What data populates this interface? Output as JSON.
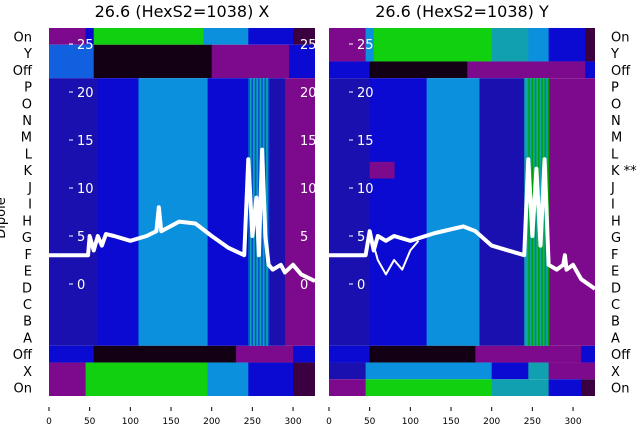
{
  "chart_data": {
    "type": "heatmap",
    "ylabel": "Dipole",
    "row_labels_left": [
      "On",
      "Y",
      "Off",
      "P",
      "O",
      "N",
      "M",
      "L",
      "K",
      "J",
      "I",
      "H",
      "G",
      "F",
      "E",
      "D",
      "C",
      "B",
      "A",
      "Off",
      "X",
      "On"
    ],
    "row_labels_right": [
      "On",
      "Y",
      "Off",
      "P",
      "O",
      "N",
      "M",
      "L",
      "K **",
      "J",
      "I",
      "H",
      "G",
      "F",
      "E",
      "D",
      "C",
      "B",
      "A",
      "Off",
      "X",
      "On"
    ],
    "colors": {
      "purple": "#7d0a8c",
      "blue": "#0a0ad2",
      "darkblue": "#1a10b0",
      "midblue": "#1060e0",
      "lightblue": "#0a90dc",
      "cyan": "#10a0b0",
      "green": "#10d010",
      "black": "#140014",
      "darkpurple": "#3a0040"
    },
    "panels": [
      {
        "title": "26.6 (HexS2=1038) X",
        "xlim": [
          0,
          327
        ],
        "xticks": [
          0,
          50,
          100,
          150,
          200,
          250,
          300
        ],
        "yticks": [
          25,
          20,
          15,
          10,
          5,
          0
        ],
        "ylim_line": [
          -11.6,
          26.8
        ],
        "rows": [
          {
            "r": [
              0,
              1
            ],
            "segs": [
              [
                0,
                45,
                "purple"
              ],
              [
                45,
                55,
                "blue"
              ],
              [
                55,
                190,
                "green"
              ],
              [
                190,
                245,
                "lightblue"
              ],
              [
                245,
                300,
                "blue"
              ],
              [
                300,
                327,
                "darkpurple"
              ]
            ]
          },
          {
            "r": [
              1,
              3
            ],
            "segs": [
              [
                0,
                55,
                "midblue"
              ],
              [
                55,
                200,
                "black"
              ],
              [
                200,
                295,
                "purple"
              ],
              [
                295,
                327,
                "blue"
              ]
            ]
          },
          {
            "r": [
              3,
              19
            ],
            "segs": [
              [
                0,
                60,
                "darkblue"
              ],
              [
                60,
                110,
                "blue"
              ],
              [
                110,
                195,
                "lightblue"
              ],
              [
                195,
                245,
                "blue"
              ],
              [
                245,
                270,
                "cyan"
              ],
              [
                270,
                290,
                "darkblue"
              ],
              [
                290,
                327,
                "purple"
              ]
            ]
          },
          {
            "r": [
              19,
              20
            ],
            "segs": [
              [
                0,
                55,
                "blue"
              ],
              [
                55,
                230,
                "black"
              ],
              [
                230,
                300,
                "purple"
              ],
              [
                300,
                327,
                "blue"
              ]
            ]
          },
          {
            "r": [
              20,
              22
            ],
            "segs": [
              [
                0,
                45,
                "purple"
              ],
              [
                45,
                195,
                "green"
              ],
              [
                195,
                245,
                "lightblue"
              ],
              [
                245,
                300,
                "blue"
              ],
              [
                300,
                327,
                "darkpurple"
              ]
            ]
          }
        ],
        "lines": [
          [
            [
              0,
              3
            ],
            [
              48,
              3
            ],
            [
              50,
              5
            ],
            [
              55,
              3.5
            ],
            [
              60,
              5
            ],
            [
              65,
              4
            ],
            [
              70,
              5.2
            ],
            [
              80,
              5
            ],
            [
              100,
              4.5
            ],
            [
              120,
              5
            ],
            [
              132,
              5.5
            ],
            [
              135,
              8
            ],
            [
              138,
              5.5
            ],
            [
              160,
              6.5
            ],
            [
              180,
              6.3
            ],
            [
              200,
              5
            ],
            [
              220,
              3.8
            ],
            [
              240,
              3
            ],
            [
              245,
              13
            ],
            [
              250,
              5
            ],
            [
              255,
              9
            ],
            [
              258,
              3
            ],
            [
              262,
              14
            ],
            [
              266,
              5
            ],
            [
              270,
              2
            ],
            [
              275,
              1.5
            ],
            [
              285,
              2
            ],
            [
              290,
              1.2
            ],
            [
              300,
              2
            ],
            [
              310,
              1
            ],
            [
              327,
              0.3
            ]
          ]
        ]
      },
      {
        "title": "26.6 (HexS2=1038) Y",
        "xlim": [
          0,
          327
        ],
        "xticks": [
          0,
          50,
          100,
          150,
          200,
          250,
          300
        ],
        "yticks": [
          25,
          20,
          15,
          10,
          5,
          0
        ],
        "ylim_line": [
          -11.6,
          26.8
        ],
        "rows": [
          {
            "r": [
              0,
              2
            ],
            "segs": [
              [
                0,
                45,
                "purple"
              ],
              [
                45,
                55,
                "lightblue"
              ],
              [
                55,
                200,
                "green"
              ],
              [
                200,
                245,
                "cyan"
              ],
              [
                245,
                270,
                "lightblue"
              ],
              [
                270,
                315,
                "blue"
              ],
              [
                315,
                327,
                "darkpurple"
              ]
            ]
          },
          {
            "r": [
              2,
              3
            ],
            "segs": [
              [
                0,
                50,
                "blue"
              ],
              [
                50,
                170,
                "black"
              ],
              [
                170,
                315,
                "purple"
              ],
              [
                315,
                327,
                "blue"
              ]
            ]
          },
          {
            "r": [
              3,
              19
            ],
            "segs": [
              [
                0,
                50,
                "darkblue"
              ],
              [
                50,
                120,
                "blue"
              ],
              [
                120,
                185,
                "lightblue"
              ],
              [
                185,
                240,
                "darkblue"
              ],
              [
                240,
                270,
                "cyan"
              ],
              [
                270,
                327,
                "purple"
              ]
            ]
          },
          {
            "r": [
              8,
              9
            ],
            "segs": [
              [
                50,
                80,
                "purple"
              ]
            ]
          },
          {
            "r": [
              19,
              20
            ],
            "segs": [
              [
                0,
                50,
                "blue"
              ],
              [
                50,
                180,
                "black"
              ],
              [
                180,
                310,
                "purple"
              ],
              [
                310,
                327,
                "blue"
              ]
            ]
          },
          {
            "r": [
              20,
              21
            ],
            "segs": [
              [
                0,
                45,
                "darkblue"
              ],
              [
                45,
                200,
                "lightblue"
              ],
              [
                200,
                245,
                "blue"
              ],
              [
                245,
                270,
                "cyan"
              ],
              [
                270,
                327,
                "purple"
              ]
            ]
          },
          {
            "r": [
              21,
              22
            ],
            "segs": [
              [
                0,
                45,
                "purple"
              ],
              [
                45,
                200,
                "green"
              ],
              [
                200,
                270,
                "cyan"
              ],
              [
                270,
                310,
                "blue"
              ],
              [
                310,
                327,
                "darkpurple"
              ]
            ]
          }
        ],
        "lines": [
          [
            [
              0,
              3
            ],
            [
              45,
              3
            ],
            [
              50,
              5.5
            ],
            [
              55,
              3.5
            ],
            [
              60,
              5
            ],
            [
              70,
              4.5
            ],
            [
              80,
              5
            ],
            [
              100,
              4.5
            ],
            [
              130,
              5.3
            ],
            [
              165,
              6
            ],
            [
              180,
              5.5
            ],
            [
              200,
              4
            ],
            [
              220,
              3.5
            ],
            [
              240,
              3
            ],
            [
              245,
              13
            ],
            [
              250,
              5
            ],
            [
              255,
              12
            ],
            [
              260,
              4
            ],
            [
              265,
              13
            ],
            [
              270,
              2
            ],
            [
              280,
              1.5
            ],
            [
              288,
              2
            ],
            [
              290,
              3
            ],
            [
              292,
              1.5
            ],
            [
              300,
              2
            ],
            [
              310,
              0.5
            ],
            [
              327,
              -0.5
            ]
          ],
          [
            [
              55,
              4
            ],
            [
              60,
              2.5
            ],
            [
              70,
              1
            ],
            [
              80,
              2.5
            ],
            [
              90,
              1.5
            ],
            [
              100,
              3.5
            ],
            [
              110,
              4.5
            ]
          ]
        ]
      }
    ]
  }
}
